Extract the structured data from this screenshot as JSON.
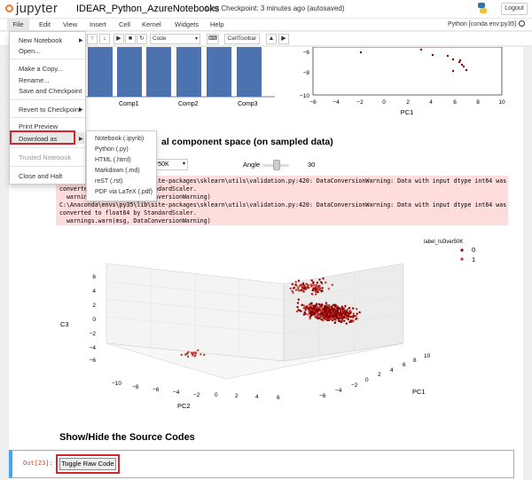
{
  "header": {
    "logo_text": "jupyter",
    "notebook_title": "IDEAR_Python_AzureNotebooks",
    "checkpoint": "Last Checkpoint: 3 minutes ago (autosaved)",
    "logout_label": "Logout"
  },
  "menubar": {
    "items": [
      "File",
      "Edit",
      "View",
      "Insert",
      "Cell",
      "Kernel",
      "Widgets",
      "Help"
    ],
    "kernel_indicator": "Python [conda env:py35]"
  },
  "toolbar": {
    "cell_type": "Code",
    "celltoolbar_label": "CellToolbar"
  },
  "file_menu": {
    "items": [
      {
        "label": "New Notebook",
        "submenu": true
      },
      {
        "label": "Open..."
      },
      {
        "label": "Make a Copy..."
      },
      {
        "label": "Rename..."
      },
      {
        "label": "Save and Checkpoint"
      },
      {
        "label": "Revert to Checkpoint",
        "submenu": true
      },
      {
        "label": "Print Preview"
      },
      {
        "label": "Download as",
        "submenu": true
      },
      {
        "label": "Trusted Notebook",
        "disabled": true
      },
      {
        "label": "Close and Halt"
      }
    ]
  },
  "download_menu": {
    "items": [
      "Notebook (.ipynb)",
      "Python (.py)",
      "HTML (.html)",
      "Markdown (.md)",
      "reST (.rst)",
      "PDF via LaTeX (.pdf)"
    ]
  },
  "bar_chart": {
    "categories": [
      "Comp1",
      "Comp2",
      "Comp3"
    ],
    "bar_color": "#4c72b0"
  },
  "pc_scatter": {
    "xlabel": "PC1",
    "xticks": [
      "−6",
      "−4",
      "−2",
      "0",
      "2",
      "4",
      "6",
      "8",
      "10"
    ],
    "yticks": [
      "−6",
      "−8",
      "−10"
    ]
  },
  "section": {
    "heading_partial": "al component space (on sampled data)",
    "dropdown_value": "er50K",
    "angle_label": "Angle",
    "angle_value": "30"
  },
  "warning": {
    "lines": [
      "C:\\Anaconda\\envs\\py35\\lib\\site-packages\\sklearn\\utils\\validation.py:420: DataConversionWarning: Data with input dtype int64 was",
      "converted to float64 by StandardScaler.",
      "  warnings.warn(msg, DataConversionWarning)",
      "C:\\Anaconda\\envs\\py35\\lib\\site-packages\\sklearn\\utils\\validation.py:420: DataConversionWarning: Data with input dtype int64 was",
      "converted to float64 by StandardScaler.",
      "  warnings.warn(msg, DataConversionWarning)"
    ]
  },
  "plot3d": {
    "zlabel": "C3",
    "xlabel": "PC2",
    "ylabel": "PC1",
    "legend_title": "label_IsOver50K",
    "legend": [
      "0",
      "1"
    ],
    "colors": {
      "class0": "#8b0000",
      "class1": "#c0392b"
    },
    "z_ticks": [
      "6",
      "4",
      "2",
      "0",
      "−2",
      "−4",
      "−6"
    ],
    "x_ticks": [
      "−10",
      "−8",
      "−6",
      "−4",
      "−2",
      "0",
      "2",
      "4",
      "6"
    ],
    "y_ticks": [
      "−6",
      "−4",
      "−2",
      "0",
      "2",
      "4",
      "6",
      "8",
      "10"
    ]
  },
  "show_hide": {
    "heading": "Show/Hide the Source Codes",
    "prompt": "Out[23]:",
    "button_label": "Toggle Raw Code"
  }
}
